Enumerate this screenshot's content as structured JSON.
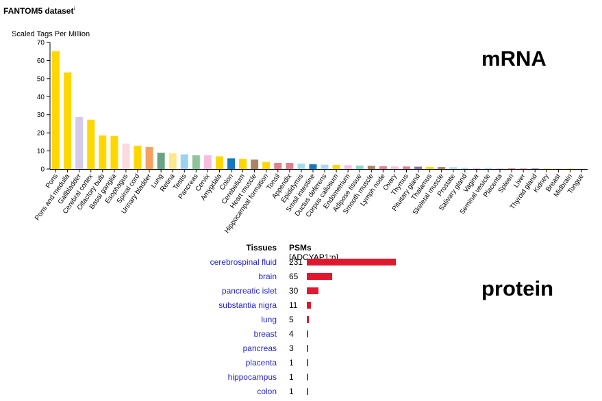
{
  "header": {
    "dataset_title": "FANTOM5 dataset",
    "dataset_info_mark": "i",
    "mrna_label": "mRNA",
    "protein_label": "protein"
  },
  "chart_data": {
    "type": "bar",
    "ylabel": "Scaled Tags Per Million",
    "ylim": [
      0,
      70
    ],
    "yticks": [
      0,
      10,
      20,
      30,
      40,
      50,
      60,
      70
    ],
    "categories": [
      "Pons",
      "Pons and medulla",
      "Gallbladder",
      "Cerebral cortex",
      "Olfactory bulb",
      "Basal ganglia",
      "Esophagus",
      "Spinal cord",
      "Urinary bladder",
      "Lung",
      "Retina",
      "Testis",
      "Pancreas",
      "Cervix",
      "Amygdala",
      "Colon",
      "Cerebellum",
      "Heart muscle",
      "Hippocampal formation",
      "Tonsil",
      "Appendix",
      "Epididymis",
      "Small intestine",
      "Ductus deferens",
      "Corpus callosum",
      "Endometrium",
      "Adipose tissue",
      "Smooth muscle",
      "Lymph node",
      "Ovary",
      "Thymus",
      "Pituitary gland",
      "Thalamus",
      "Skeletal muscle",
      "Prostate",
      "Salivary gland",
      "Vagina",
      "Seminal vesicle",
      "Placenta",
      "Spleen",
      "Liver",
      "Thyroid gland",
      "Kidney",
      "Breast",
      "Midbrain",
      "Tongue"
    ],
    "values": [
      65.2,
      53.4,
      28.8,
      27.3,
      18.6,
      18.3,
      14.1,
      12.9,
      12.1,
      9.0,
      8.7,
      8.1,
      7.6,
      7.6,
      7.0,
      5.9,
      5.7,
      5.2,
      3.9,
      3.4,
      3.4,
      3.0,
      2.6,
      2.4,
      2.3,
      2.1,
      1.9,
      1.8,
      1.5,
      1.4,
      1.4,
      1.3,
      1.2,
      1.1,
      1.0,
      0.7,
      0.6,
      0.6,
      0.4,
      0.4,
      0.3,
      0.3,
      0.2,
      0.2,
      0.1,
      0.1
    ],
    "colors": [
      "#ffd700",
      "#ffd700",
      "#d4cbeb",
      "#ffd700",
      "#ffd700",
      "#ffd700",
      "#fadadf",
      "#ffd700",
      "#f4a061",
      "#68a483",
      "#fde98b",
      "#9ad3f1",
      "#8fc499",
      "#f7bde0",
      "#ffd700",
      "#1478bd",
      "#ffd700",
      "#ab8262",
      "#ffd700",
      "#e08090",
      "#e08090",
      "#a8d8f0",
      "#1478bd",
      "#a8d8f0",
      "#ffd700",
      "#f7bde0",
      "#8fd3c4",
      "#ab8262",
      "#e08090",
      "#f7bde0",
      "#e08090",
      "#8a6fa0",
      "#ffd700",
      "#ab8262",
      "#a8d8f0",
      "#a8d8f0",
      "#f7bde0",
      "#a8d8f0",
      "#f7bde0",
      "#e08090",
      "#e08090",
      "#8a6fa0",
      "#ffd700",
      "#f7bde0",
      "#ffd700",
      "#f7bde0"
    ],
    "grid": false,
    "legend": "none"
  },
  "protein": {
    "header_tissues": "Tissues",
    "header_psms": "PSMs",
    "header_gene": "[ADCYAP1:p]",
    "rows": [
      {
        "tissue": "cerebrospinal fluid",
        "psms": 231
      },
      {
        "tissue": "brain",
        "psms": 65
      },
      {
        "tissue": "pancreatic islet",
        "psms": 30
      },
      {
        "tissue": "substantia nigra",
        "psms": 11
      },
      {
        "tissue": "lung",
        "psms": 5
      },
      {
        "tissue": "breast",
        "psms": 4
      },
      {
        "tissue": "pancreas",
        "psms": 3
      },
      {
        "tissue": "placenta",
        "psms": 1
      },
      {
        "tissue": "hippocampus",
        "psms": 1
      },
      {
        "tissue": "colon",
        "psms": 1
      }
    ],
    "bar_color": "#e0182f"
  }
}
